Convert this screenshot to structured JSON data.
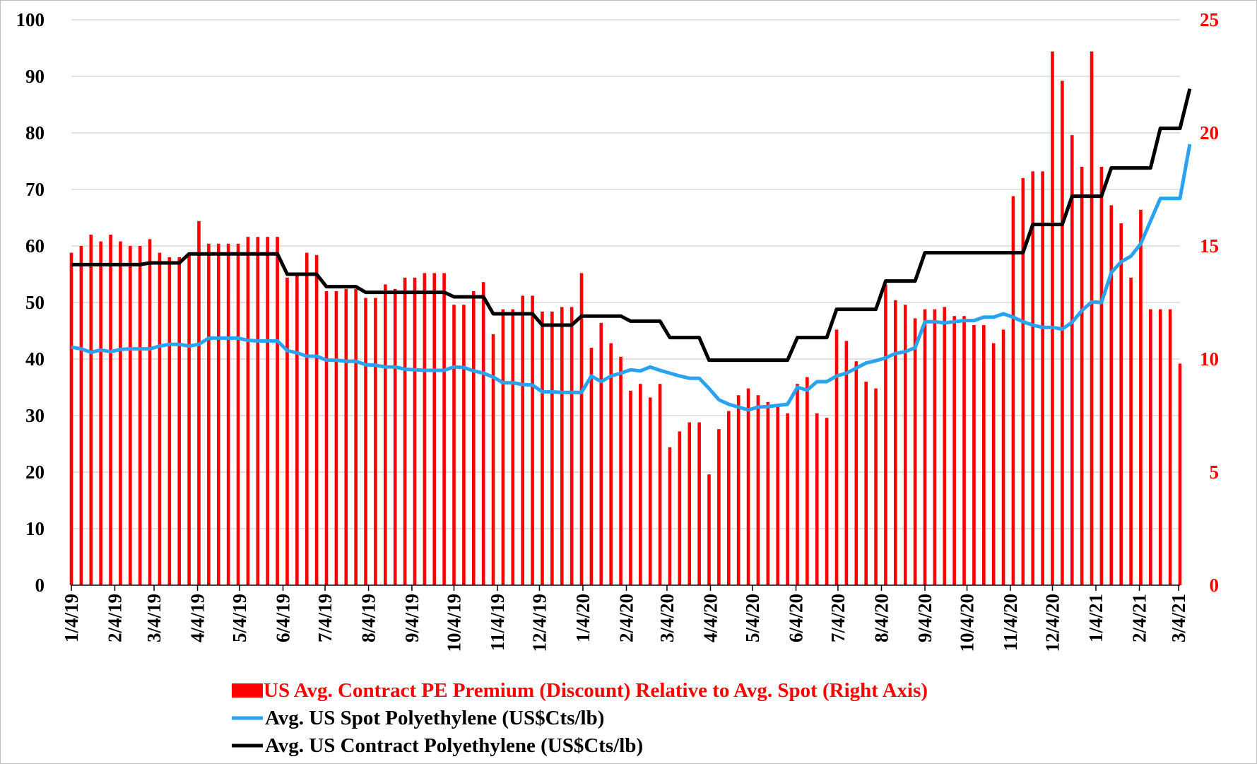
{
  "colors": {
    "bars": "#ff0000",
    "spot_line": "#29a3ef",
    "contract_line": "#000000",
    "grid": "#d9d9d9",
    "right_axis_text": "#ff0000"
  },
  "chart_data": {
    "type": "bar+line",
    "title": "",
    "y_left": {
      "min": 0,
      "max": 100,
      "ticks": [
        0,
        10,
        20,
        30,
        40,
        50,
        60,
        70,
        80,
        90,
        100
      ]
    },
    "y_right": {
      "min": 0,
      "max": 25,
      "ticks": [
        0,
        5,
        10,
        15,
        20,
        25
      ]
    },
    "x_tick_labels": [
      "1/4/19",
      "2/4/19",
      "3/4/19",
      "4/4/19",
      "5/4/19",
      "6/4/19",
      "7/4/19",
      "8/4/19",
      "9/4/19",
      "10/4/19",
      "11/4/19",
      "12/4/19",
      "1/4/20",
      "2/4/20",
      "3/4/20",
      "4/4/20",
      "5/4/20",
      "6/4/20",
      "7/4/20",
      "8/4/20",
      "9/4/20",
      "10/4/20",
      "11/4/20",
      "12/4/20",
      "1/4/21",
      "2/4/21",
      "3/4/21"
    ],
    "x_tick_weeks": [
      0,
      4.43,
      8.43,
      12.86,
      17.14,
      21.57,
      25.86,
      30.29,
      34.71,
      39,
      43.43,
      47.71,
      52.14,
      56.57,
      60.71,
      65.14,
      69.43,
      73.86,
      78.14,
      82.57,
      87,
      91.29,
      95.71,
      100,
      104.43,
      108.86,
      112.86
    ],
    "legend": [
      "US Avg. Contract PE Premium (Discount) Relative to Avg. Spot (Right Axis)",
      "Avg. US Spot Polyethylene (US$Cts/lb)",
      "Avg. US Contract Polyethylene (US$Cts/lb)"
    ],
    "series": [
      {
        "name": "US Avg. Contract PE Premium (Discount) Relative to Avg. Spot (Right Axis)",
        "type": "bar",
        "axis": "right",
        "values": [
          14.7,
          15.0,
          15.5,
          15.2,
          15.5,
          15.2,
          15.0,
          15.0,
          15.3,
          14.7,
          14.5,
          14.5,
          14.7,
          16.1,
          15.1,
          15.1,
          15.1,
          15.1,
          15.4,
          15.4,
          15.4,
          15.4,
          13.6,
          13.8,
          14.7,
          14.6,
          13.0,
          13.0,
          13.1,
          13.1,
          12.7,
          12.7,
          13.3,
          13.1,
          13.6,
          13.6,
          13.8,
          13.8,
          13.8,
          12.4,
          12.4,
          13.0,
          13.4,
          11.1,
          12.2,
          12.2,
          12.8,
          12.8,
          12.1,
          12.1,
          12.3,
          12.3,
          13.8,
          10.5,
          11.6,
          10.7,
          10.1,
          8.6,
          8.9,
          8.3,
          8.9,
          6.1,
          6.8,
          7.2,
          7.2,
          4.9,
          6.9,
          7.7,
          8.4,
          8.7,
          8.4,
          8.1,
          8.0,
          7.6,
          8.9,
          9.2,
          7.6,
          7.4,
          11.3,
          10.8,
          9.9,
          9.0,
          8.7,
          13.3,
          12.6,
          12.4,
          11.8,
          12.2,
          12.2,
          12.3,
          11.9,
          11.9,
          11.5,
          11.5,
          10.7,
          11.3,
          17.2,
          18.0,
          18.3,
          18.3,
          23.6,
          22.3,
          19.9,
          18.5,
          23.6,
          18.5,
          16.8,
          16.0,
          13.6,
          16.6,
          12.2,
          12.2,
          12.2,
          9.8
        ]
      },
      {
        "name": "Avg. US Spot Polyethylene (US$Cts/lb)",
        "type": "line",
        "axis": "left",
        "values": [
          42.1,
          41.8,
          41.2,
          41.6,
          41.3,
          41.7,
          41.8,
          41.8,
          41.8,
          42.3,
          42.6,
          42.6,
          42.3,
          42.6,
          43.7,
          43.7,
          43.7,
          43.7,
          43.3,
          43.2,
          43.2,
          43.2,
          41.5,
          41.1,
          40.5,
          40.5,
          39.8,
          39.8,
          39.6,
          39.6,
          39.0,
          38.9,
          38.6,
          38.6,
          38.2,
          38.1,
          38.0,
          38.0,
          38.0,
          38.6,
          38.5,
          37.9,
          37.5,
          36.8,
          35.8,
          35.8,
          35.5,
          35.4,
          34.2,
          34.2,
          34.1,
          34.1,
          34.1,
          37.0,
          36.0,
          37.0,
          37.5,
          38.1,
          37.9,
          38.6,
          38.0,
          37.5,
          37.0,
          36.6,
          36.6,
          34.8,
          32.8,
          32.0,
          31.5,
          31.0,
          31.5,
          31.6,
          31.8,
          32.0,
          35.0,
          34.5,
          36.0,
          36.0,
          37.0,
          37.5,
          38.4,
          39.3,
          39.7,
          40.2,
          41.0,
          41.3,
          42.0,
          46.6,
          46.6,
          46.4,
          46.6,
          46.8,
          46.8,
          47.4,
          47.4,
          48.0,
          47.4,
          46.6,
          46.0,
          45.6,
          45.6,
          45.3,
          46.5,
          48.6,
          50.1,
          50.0,
          55.3,
          57.2,
          58.2,
          60.4,
          64.4,
          68.4,
          68.4,
          68.4,
          78.0
        ]
      },
      {
        "name": "Avg. US Contract Polyethylene (US$Cts/lb)",
        "type": "line",
        "axis": "left",
        "values": [
          56.7,
          56.7,
          56.7,
          56.7,
          56.7,
          56.7,
          56.7,
          56.7,
          57.0,
          57.0,
          57.0,
          57.0,
          58.6,
          58.6,
          58.6,
          58.6,
          58.6,
          58.6,
          58.6,
          58.6,
          58.6,
          58.6,
          55.0,
          55.0,
          55.0,
          55.0,
          52.8,
          52.8,
          52.8,
          52.8,
          51.8,
          51.8,
          51.8,
          51.8,
          51.8,
          51.8,
          51.8,
          51.8,
          51.8,
          51.0,
          51.0,
          51.0,
          51.0,
          48.0,
          48.0,
          48.0,
          48.0,
          48.0,
          46.0,
          46.0,
          46.0,
          46.0,
          47.6,
          47.6,
          47.6,
          47.6,
          47.6,
          46.7,
          46.7,
          46.7,
          46.7,
          43.8,
          43.8,
          43.8,
          43.8,
          39.8,
          39.8,
          39.8,
          39.8,
          39.8,
          39.8,
          39.8,
          39.8,
          39.8,
          43.8,
          43.8,
          43.8,
          43.8,
          48.8,
          48.8,
          48.8,
          48.8,
          48.8,
          53.8,
          53.8,
          53.8,
          53.8,
          58.8,
          58.8,
          58.8,
          58.8,
          58.8,
          58.8,
          58.8,
          58.8,
          58.8,
          58.8,
          58.8,
          63.8,
          63.8,
          63.8,
          63.8,
          68.8,
          68.8,
          68.8,
          68.8,
          73.8,
          73.8,
          73.8,
          73.8,
          73.8,
          80.8,
          80.8,
          80.8,
          87.8
        ]
      }
    ]
  }
}
